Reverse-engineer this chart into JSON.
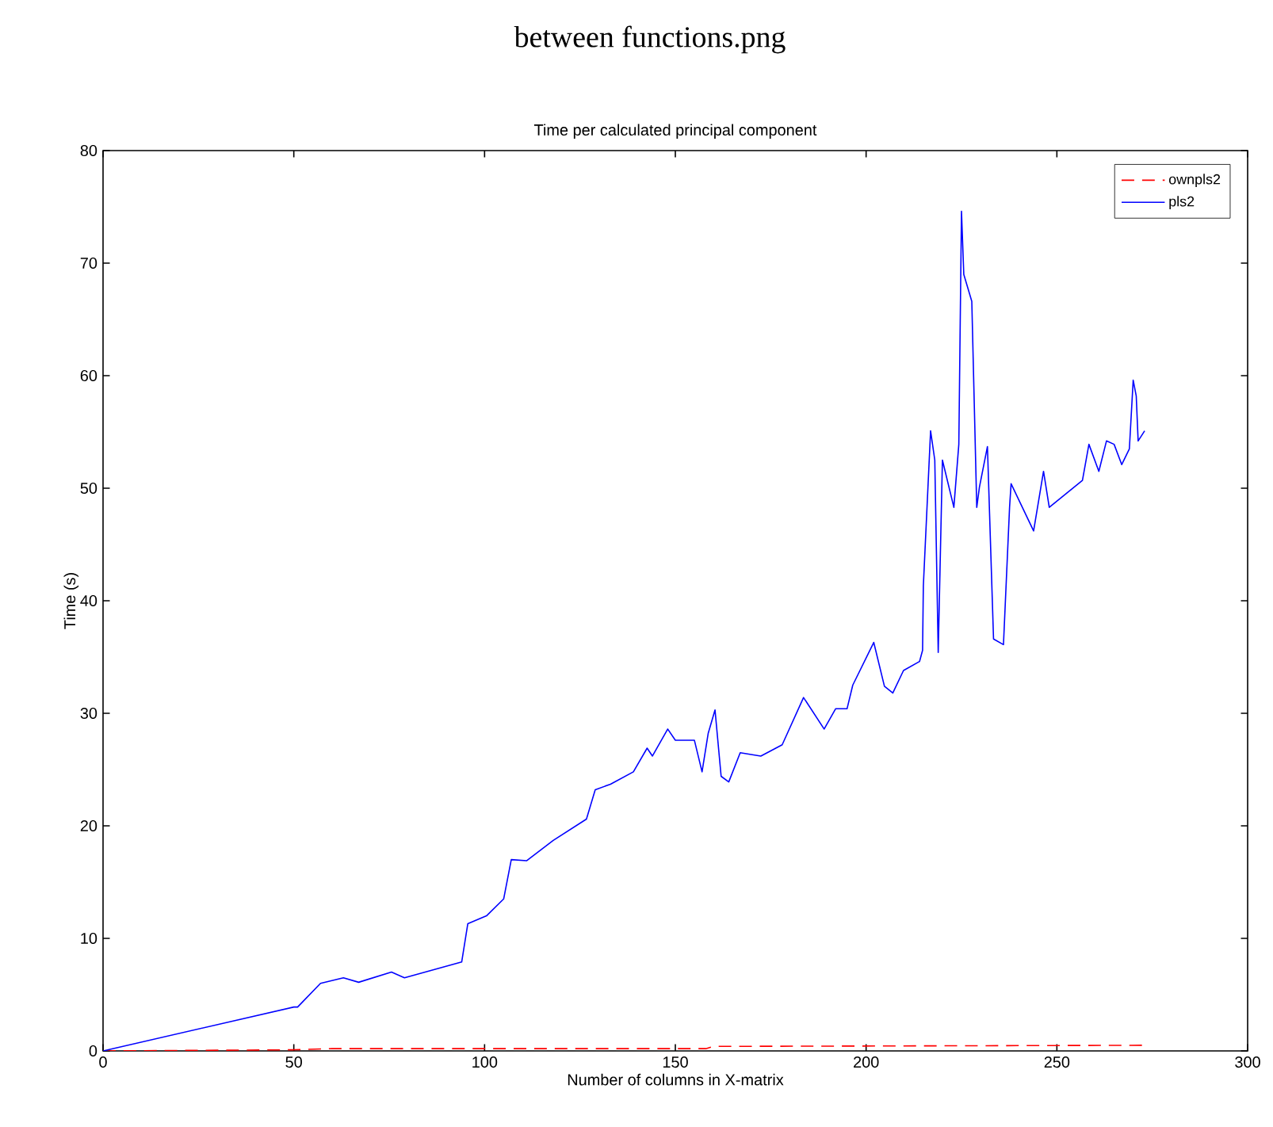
{
  "chart_data": {
    "type": "line",
    "title": "between functions.png",
    "subtitle": "Time per calculated principal component",
    "xlabel": "Number of columns in X-matrix",
    "ylabel": "Time (s)",
    "xlim": [
      0,
      300
    ],
    "xticks": [
      0,
      50,
      100,
      150,
      200,
      250,
      300
    ],
    "ylim": [
      0,
      80
    ],
    "yticks": [
      0,
      10,
      20,
      30,
      40,
      50,
      60,
      70,
      80
    ],
    "grid": false,
    "legend": "top right",
    "marker": "none",
    "series": [
      {
        "name": "ownpls2",
        "color": "#ff0000",
        "line_style": "dashed",
        "x": [
          0,
          50,
          60,
          100,
          150,
          158,
          160,
          273
        ],
        "values": [
          0,
          0.1,
          0.2,
          0.2,
          0.2,
          0.2,
          0.4,
          0.5
        ]
      },
      {
        "name": "pls2",
        "color": "#0000ff",
        "line_style": "solid",
        "x": [
          0,
          50,
          51,
          57,
          63,
          67,
          75.6,
          79,
          94,
          95.6,
          100.5,
          105,
          107,
          111,
          118,
          126.7,
          129,
          133,
          139,
          142.6,
          144,
          148,
          150,
          155,
          157,
          158.6,
          160.4,
          162,
          164,
          167,
          172.4,
          178,
          183.6,
          189,
          192,
          195,
          196.5,
          202,
          204.8,
          207,
          209.8,
          214,
          214.8,
          215,
          216.9,
          218,
          218.9,
          220,
          223,
          224.3,
          225,
          225.6,
          227.7,
          229,
          229.7,
          231.8,
          233.4,
          236,
          237.6,
          238,
          243.9,
          246.5,
          248,
          256.7,
          258.4,
          261,
          263,
          265,
          267,
          269,
          270,
          270.8,
          271.3,
          273
        ],
        "values": [
          0,
          3.9,
          3.9,
          6.0,
          6.5,
          6.1,
          7.0,
          6.5,
          7.9,
          11.3,
          12,
          13.5,
          17,
          16.9,
          18.7,
          20.6,
          23.2,
          23.7,
          24.8,
          26.9,
          26.2,
          28.6,
          27.6,
          27.6,
          24.8,
          28.2,
          30.3,
          24.4,
          23.9,
          26.5,
          26.2,
          27.2,
          31.4,
          28.6,
          30.4,
          30.4,
          32.5,
          36.3,
          32.4,
          31.8,
          33.8,
          34.6,
          35.6,
          41.3,
          55.1,
          52.5,
          35.4,
          52.5,
          48.3,
          53.9,
          74.6,
          69,
          66.6,
          48.3,
          50.1,
          53.7,
          36.6,
          36.1,
          48.3,
          50.4,
          46.2,
          51.5,
          48.3,
          50.7,
          53.9,
          51.5,
          54.2,
          53.9,
          52.1,
          53.5,
          59.6,
          58.2,
          54.2,
          55.1
        ]
      }
    ]
  }
}
